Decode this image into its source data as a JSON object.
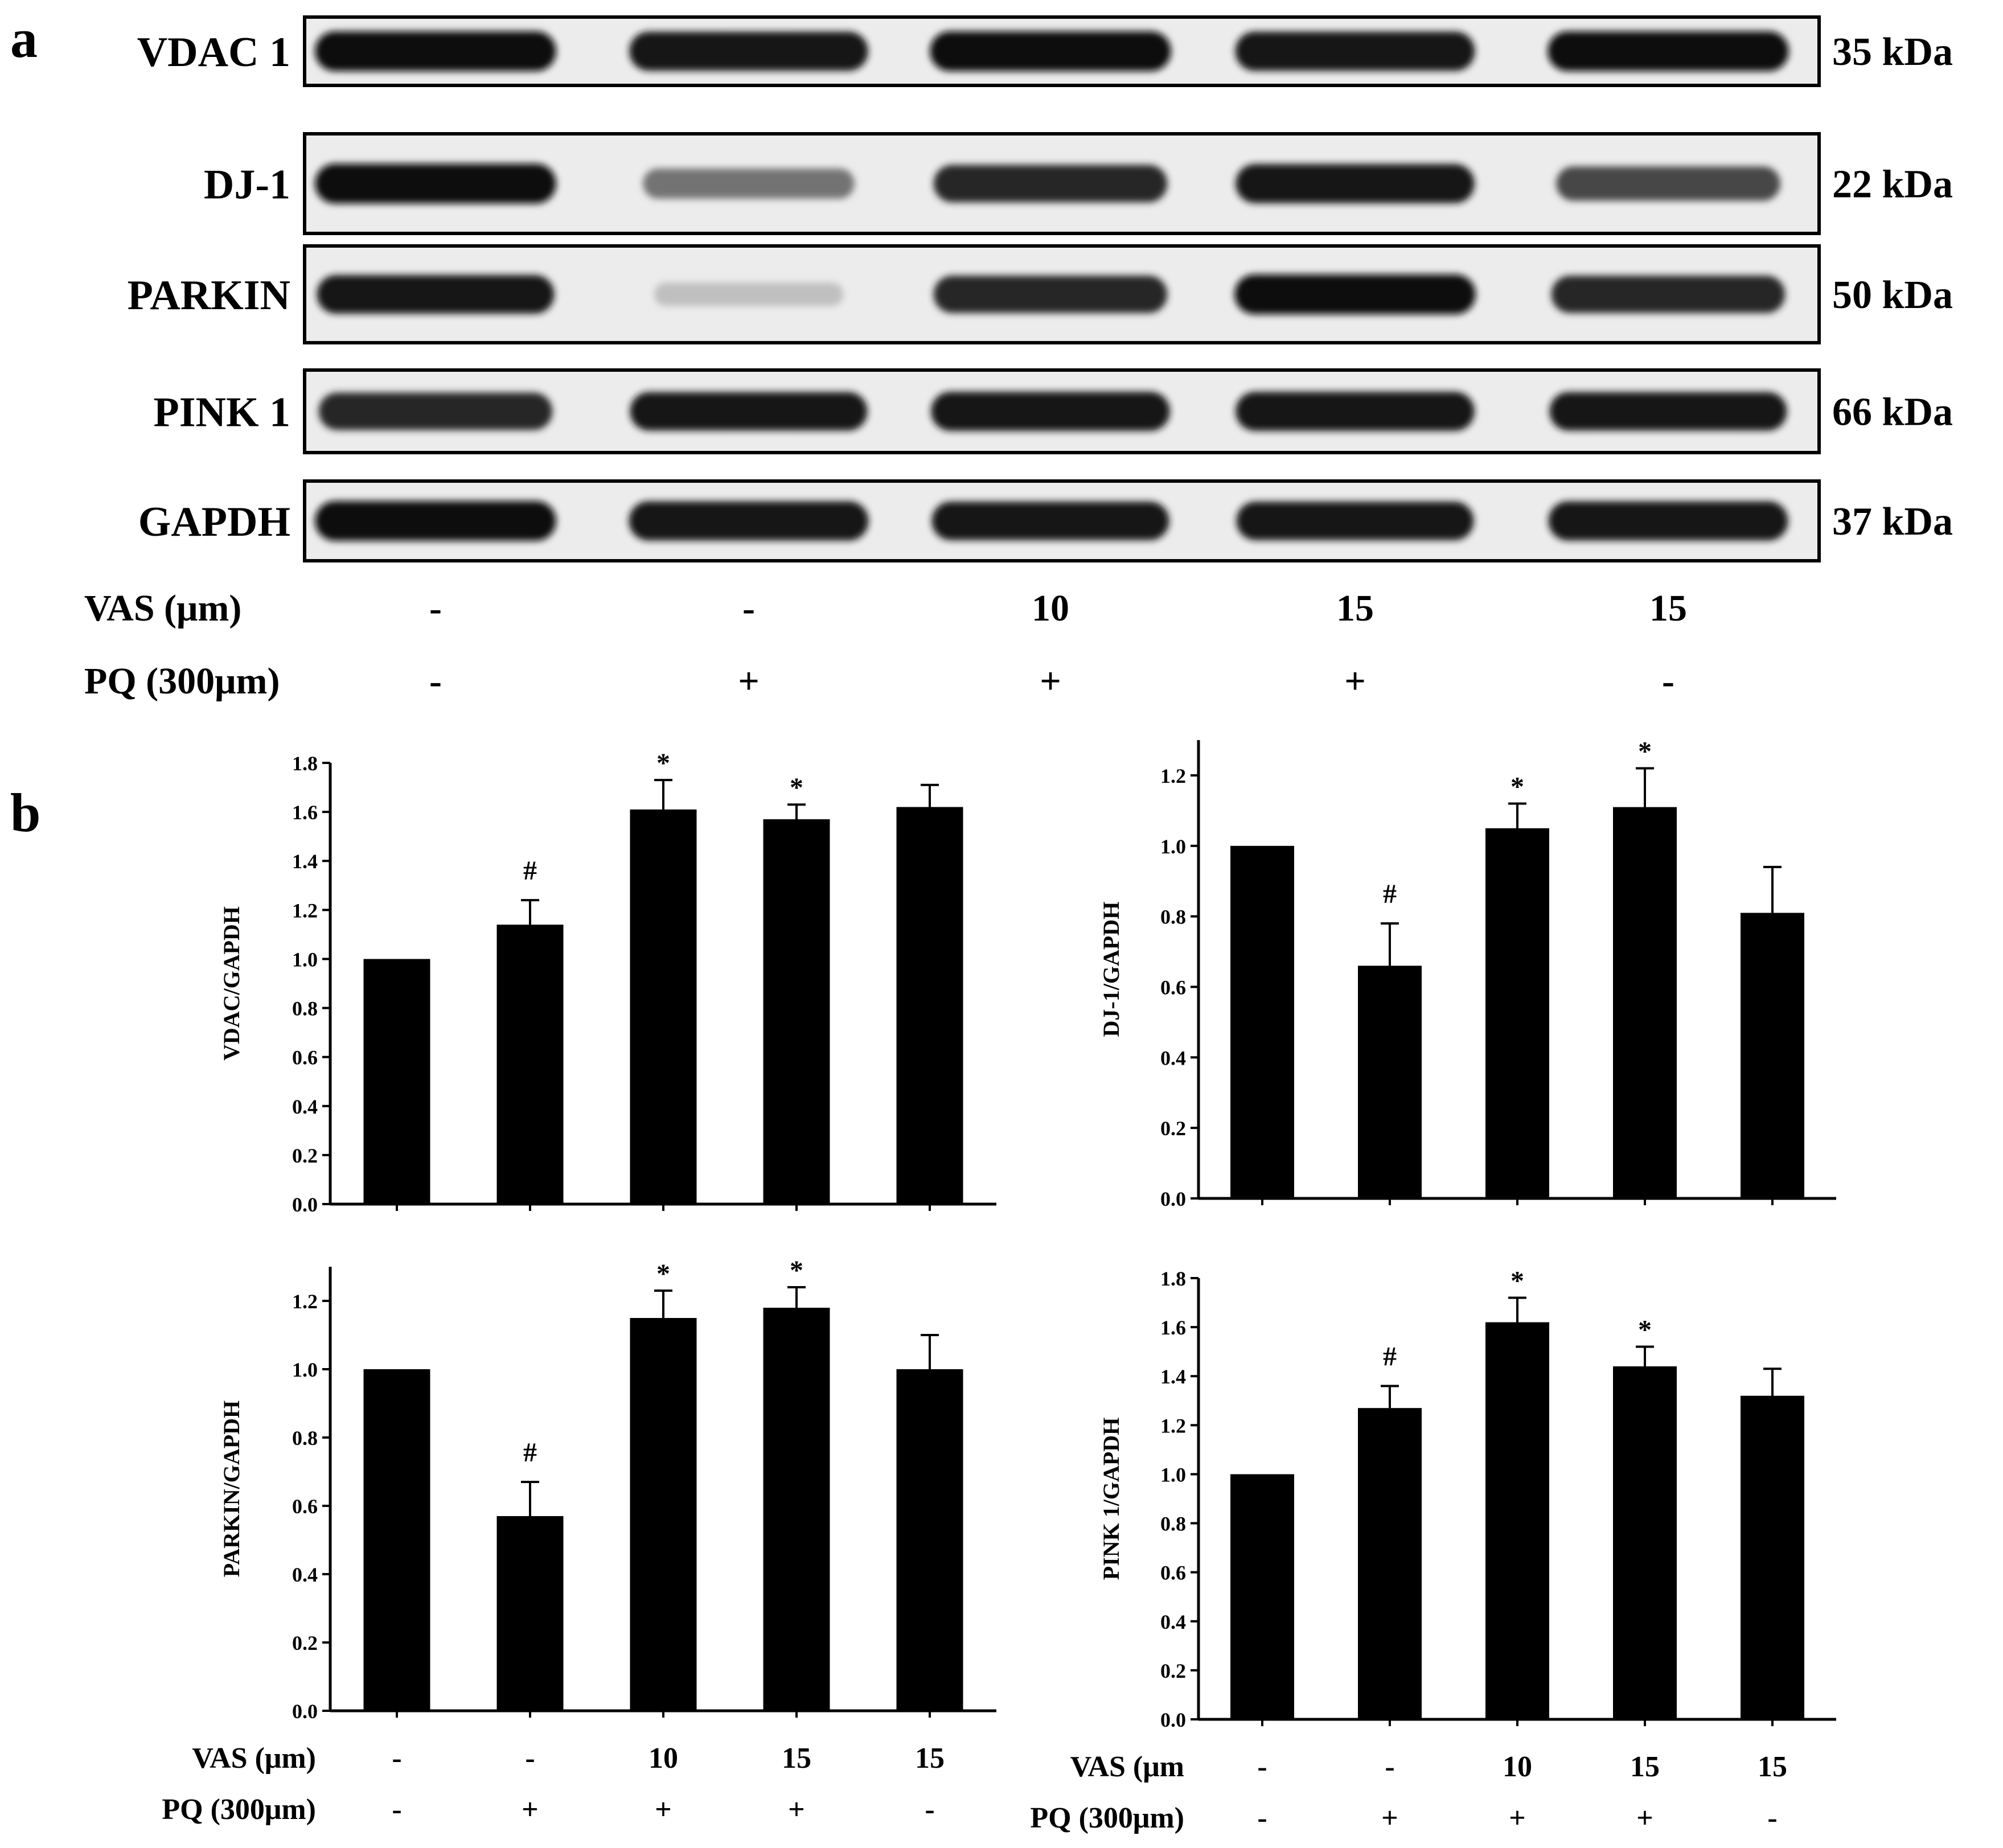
{
  "panel_a": {
    "letter": "a",
    "blots": [
      {
        "name": "VDAC 1",
        "kda": "35 kDa",
        "intensity": [
          0.95,
          0.92,
          0.95,
          0.93,
          0.95
        ]
      },
      {
        "name": "DJ-1",
        "kda": "22 kDa",
        "intensity": [
          0.95,
          0.55,
          0.85,
          0.92,
          0.72
        ]
      },
      {
        "name": "PARKIN",
        "kda": "50 kDa",
        "intensity": [
          0.9,
          0.25,
          0.85,
          0.95,
          0.85
        ]
      },
      {
        "name": "PINK 1",
        "kda": "66 kDa",
        "intensity": [
          0.85,
          0.9,
          0.92,
          0.92,
          0.9
        ]
      },
      {
        "name": "GAPDH",
        "kda": "37 kDa",
        "intensity": [
          0.95,
          0.93,
          0.9,
          0.9,
          0.93
        ]
      }
    ],
    "vas_label": "VAS (μm)",
    "vas_values": [
      "-",
      "-",
      "10",
      "15",
      "15"
    ],
    "pq_label": "PQ (300μm)",
    "pq_values": [
      "-",
      "+",
      "+",
      "+",
      "-"
    ]
  },
  "panel_b": {
    "letter": "b"
  },
  "chart_data": [
    {
      "type": "bar",
      "ylabel": "VDAC/GAPDH",
      "values": [
        1.0,
        1.14,
        1.61,
        1.57,
        1.62
      ],
      "errors": [
        0,
        0.1,
        0.12,
        0.06,
        0.09
      ],
      "annotations": [
        "",
        "#",
        "*",
        "*",
        ""
      ],
      "ylim": [
        0,
        1.8
      ],
      "yticks": [
        "0.0",
        "0.2",
        "0.4",
        "0.6",
        "0.8",
        "1.0",
        "1.2",
        "1.4",
        "1.6",
        "1.8"
      ],
      "vas": [],
      "pq": []
    },
    {
      "type": "bar",
      "ylabel": "DJ-1/GAPDH",
      "values": [
        1.0,
        0.66,
        1.05,
        1.11,
        0.81
      ],
      "errors": [
        0,
        0.12,
        0.07,
        0.11,
        0.13
      ],
      "annotations": [
        "",
        "#",
        "*",
        "*",
        ""
      ],
      "ylim": [
        0,
        1.3
      ],
      "yticks": [
        "0.0",
        "0.2",
        "0.4",
        "0.6",
        "0.8",
        "1.0",
        "1.2"
      ],
      "vas": [],
      "pq": []
    },
    {
      "type": "bar",
      "ylabel": "PARKIN/GAPDH",
      "values": [
        1.0,
        0.57,
        1.15,
        1.18,
        1.0
      ],
      "errors": [
        0,
        0.1,
        0.08,
        0.06,
        0.1
      ],
      "annotations": [
        "",
        "#",
        "*",
        "*",
        ""
      ],
      "ylim": [
        0,
        1.3
      ],
      "yticks": [
        "0.0",
        "0.2",
        "0.4",
        "0.6",
        "0.8",
        "1.0",
        "1.2"
      ],
      "vas_label": "VAS (μm)",
      "vas": [
        "-",
        "-",
        "10",
        "15",
        "15"
      ],
      "pq_label": "PQ (300μm)",
      "pq": [
        "-",
        "+",
        "+",
        "+",
        "-"
      ]
    },
    {
      "type": "bar",
      "ylabel": "PINK 1/GAPDH",
      "values": [
        1.0,
        1.27,
        1.62,
        1.44,
        1.32
      ],
      "errors": [
        0,
        0.09,
        0.1,
        0.08,
        0.11
      ],
      "annotations": [
        "",
        "#",
        "*",
        "*",
        ""
      ],
      "ylim": [
        0,
        1.8
      ],
      "yticks": [
        "0.0",
        "0.2",
        "0.4",
        "0.6",
        "0.8",
        "1.0",
        "1.2",
        "1.4",
        "1.6",
        "1.8"
      ],
      "vas_label": "VAS (μm",
      "vas": [
        "-",
        "-",
        "10",
        "15",
        "15"
      ],
      "pq_label": "PQ (300μm)",
      "pq": [
        "-",
        "+",
        "+",
        "+",
        "-"
      ]
    }
  ]
}
